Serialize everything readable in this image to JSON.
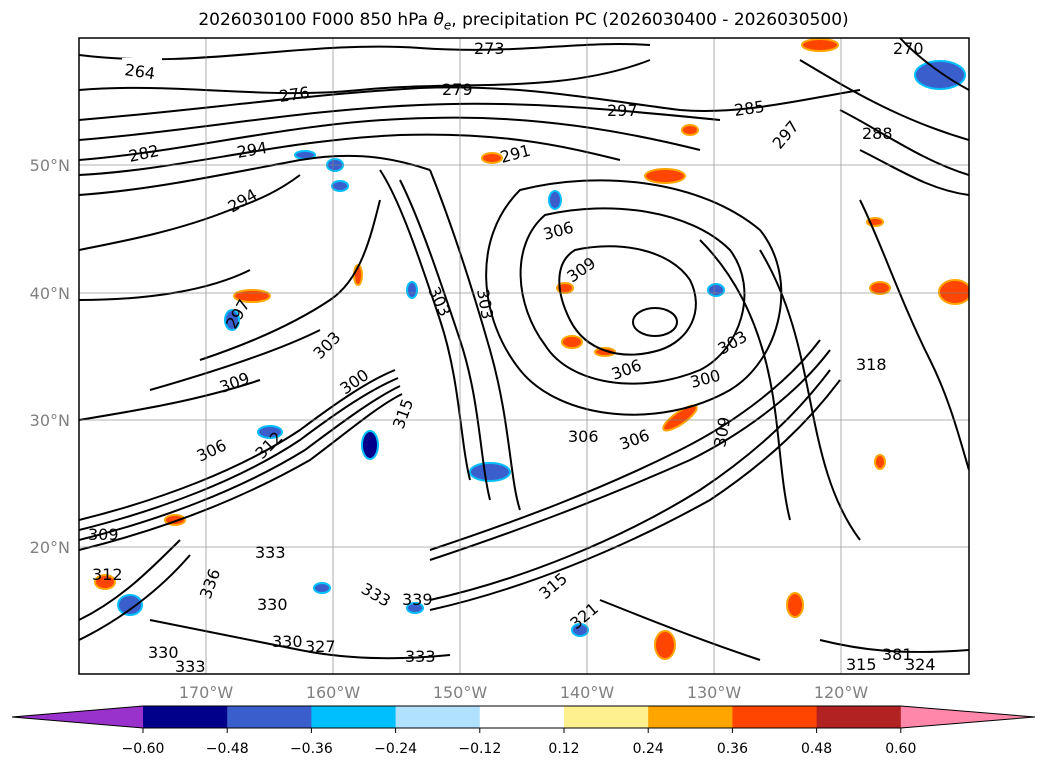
{
  "title": {
    "prefix": "2026030100 F000 850 hPa ",
    "theta": "θ",
    "theta_sub": "e",
    "suffix": ", precipitation PC (2026030400 - 2026030500)"
  },
  "map": {
    "lon_labels": [
      "170°W",
      "160°W",
      "150°W",
      "140°W",
      "130°W",
      "120°W"
    ],
    "lat_labels": [
      "50°N",
      "40°N",
      "30°N",
      "20°N"
    ],
    "contour_labels": [
      "264",
      "276",
      "282",
      "294",
      "294",
      "297",
      "273",
      "279",
      "270",
      "285",
      "288",
      "297",
      "291",
      "306",
      "309",
      "303",
      "303",
      "303",
      "306",
      "306",
      "300",
      "309",
      "303",
      "300",
      "306",
      "306",
      "315",
      "309",
      "312",
      "333",
      "336",
      "330",
      "333",
      "330",
      "327",
      "333",
      "339",
      "333",
      "315",
      "315",
      "381",
      "324",
      "297",
      "309",
      "312",
      "321",
      "318",
      "330"
    ]
  },
  "colorbar": {
    "colors": [
      "#9932cc",
      "#00008b",
      "#3a5fcd",
      "#00bfff",
      "#b0e2ff",
      "#ffffff",
      "#fff08f",
      "#ffa500",
      "#ff4500",
      "#b22222",
      "#ff88aa"
    ],
    "tick_labels": [
      "−0.60",
      "−0.48",
      "−0.36",
      "−0.24",
      "−0.12",
      "0.12",
      "0.24",
      "0.36",
      "0.48",
      "0.60"
    ]
  }
}
